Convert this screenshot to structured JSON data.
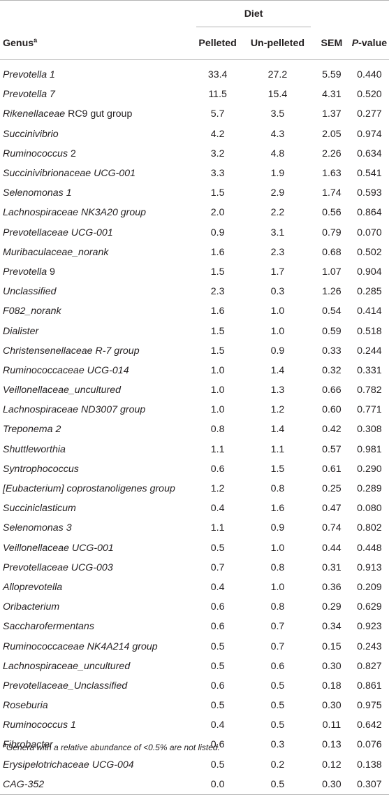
{
  "header": {
    "group_label": "Diet",
    "genus_label": "Genus",
    "genus_sup": "a",
    "col_pelleted": "Pelleted",
    "col_unpelleted": "Un-pelleted",
    "col_sem": "SEM",
    "col_p_italic": "P",
    "col_p_rest": "-value"
  },
  "rows": [
    {
      "genus": "Prevotella 1",
      "italic": "Prevotella 1",
      "rest": "",
      "pelleted": "33.4",
      "unpelleted": "27.2",
      "sem": "5.59",
      "p": "0.440"
    },
    {
      "italic": "Prevotella 7",
      "rest": "",
      "pelleted": "11.5",
      "unpelleted": "15.4",
      "sem": "4.31",
      "p": "0.520"
    },
    {
      "italic": "Rikenellaceae",
      "rest": " RC9 gut group",
      "pelleted": "5.7",
      "unpelleted": "3.5",
      "sem": "1.37",
      "p": "0.277"
    },
    {
      "italic": "Succinivibrio",
      "rest": "",
      "pelleted": "4.2",
      "unpelleted": "4.3",
      "sem": "2.05",
      "p": "0.974"
    },
    {
      "italic": "Ruminococcus",
      "rest": " 2",
      "pelleted": "3.2",
      "unpelleted": "4.8",
      "sem": "2.26",
      "p": "0.634"
    },
    {
      "italic": "Succinivibrionaceae UCG-001",
      "rest": "",
      "pelleted": "3.3",
      "unpelleted": "1.9",
      "sem": "1.63",
      "p": "0.541"
    },
    {
      "italic": "Selenomonas 1",
      "rest": "",
      "pelleted": "1.5",
      "unpelleted": "2.9",
      "sem": "1.74",
      "p": "0.593"
    },
    {
      "italic": "Lachnospiraceae NK3A20 group",
      "rest": "",
      "pelleted": "2.0",
      "unpelleted": "2.2",
      "sem": "0.56",
      "p": "0.864"
    },
    {
      "italic": "Prevotellaceae UCG-001",
      "rest": "",
      "pelleted": "0.9",
      "unpelleted": "3.1",
      "sem": "0.79",
      "p": "0.070"
    },
    {
      "italic": "Muribaculaceae_norank",
      "rest": "",
      "pelleted": "1.6",
      "unpelleted": "2.3",
      "sem": "0.68",
      "p": "0.502"
    },
    {
      "italic": "Prevotella",
      "rest": " 9",
      "pelleted": "1.5",
      "unpelleted": "1.7",
      "sem": "1.07",
      "p": "0.904"
    },
    {
      "italic": "Unclassified",
      "rest": "",
      "pelleted": "2.3",
      "unpelleted": "0.3",
      "sem": "1.26",
      "p": "0.285"
    },
    {
      "italic": "F082_norank",
      "rest": "",
      "pelleted": "1.6",
      "unpelleted": "1.0",
      "sem": "0.54",
      "p": "0.414"
    },
    {
      "italic": "Dialister",
      "rest": "",
      "pelleted": "1.5",
      "unpelleted": "1.0",
      "sem": "0.59",
      "p": "0.518"
    },
    {
      "italic": "Christensenellaceae R-7 group",
      "rest": "",
      "pelleted": "1.5",
      "unpelleted": "0.9",
      "sem": "0.33",
      "p": "0.244"
    },
    {
      "italic": "Ruminococcaceae UCG-014",
      "rest": "",
      "pelleted": "1.0",
      "unpelleted": "1.4",
      "sem": "0.32",
      "p": "0.331"
    },
    {
      "italic": "Veillonellaceae_uncultured",
      "rest": "",
      "pelleted": "1.0",
      "unpelleted": "1.3",
      "sem": "0.66",
      "p": "0.782"
    },
    {
      "italic": "Lachnospiraceae ND3007 group",
      "rest": "",
      "pelleted": "1.0",
      "unpelleted": "1.2",
      "sem": "0.60",
      "p": "0.771"
    },
    {
      "italic": "Treponema 2",
      "rest": "",
      "pelleted": "0.8",
      "unpelleted": "1.4",
      "sem": "0.42",
      "p": "0.308"
    },
    {
      "italic": "Shuttleworthia",
      "rest": "",
      "pelleted": "1.1",
      "unpelleted": "1.1",
      "sem": "0.57",
      "p": "0.981"
    },
    {
      "italic": "Syntrophococcus",
      "rest": "",
      "pelleted": "0.6",
      "unpelleted": "1.5",
      "sem": "0.61",
      "p": "0.290"
    },
    {
      "italic": "[Eubacterium] coprostanoligenes group",
      "rest": "",
      "pelleted": "1.2",
      "unpelleted": "0.8",
      "sem": "0.25",
      "p": "0.289"
    },
    {
      "italic": "Succiniclasticum",
      "rest": "",
      "pelleted": "0.4",
      "unpelleted": "1.6",
      "sem": "0.47",
      "p": "0.080"
    },
    {
      "italic": "Selenomonas 3",
      "rest": "",
      "pelleted": "1.1",
      "unpelleted": "0.9",
      "sem": "0.74",
      "p": "0.802"
    },
    {
      "italic": "Veillonellaceae UCG-001",
      "rest": "",
      "pelleted": "0.5",
      "unpelleted": "1.0",
      "sem": "0.44",
      "p": "0.448"
    },
    {
      "italic": "Prevotellaceae UCG-003",
      "rest": "",
      "pelleted": "0.7",
      "unpelleted": "0.8",
      "sem": "0.31",
      "p": "0.913"
    },
    {
      "italic": "Alloprevotella",
      "rest": "",
      "pelleted": "0.4",
      "unpelleted": "1.0",
      "sem": "0.36",
      "p": "0.209"
    },
    {
      "italic": "Oribacterium",
      "rest": "",
      "pelleted": "0.6",
      "unpelleted": "0.8",
      "sem": "0.29",
      "p": "0.629"
    },
    {
      "italic": "Saccharofermentans",
      "rest": "",
      "pelleted": "0.6",
      "unpelleted": "0.7",
      "sem": "0.34",
      "p": "0.923"
    },
    {
      "italic": "Ruminococcaceae NK4A214 group",
      "rest": "",
      "pelleted": "0.5",
      "unpelleted": "0.7",
      "sem": "0.15",
      "p": "0.243"
    },
    {
      "italic": "Lachnospiraceae_uncultured",
      "rest": "",
      "pelleted": "0.5",
      "unpelleted": "0.6",
      "sem": "0.30",
      "p": "0.827"
    },
    {
      "italic": "Prevotellaceae_Unclassified",
      "rest": "",
      "pelleted": "0.6",
      "unpelleted": "0.5",
      "sem": "0.18",
      "p": "0.861"
    },
    {
      "italic": "Roseburia",
      "rest": "",
      "pelleted": "0.5",
      "unpelleted": "0.5",
      "sem": "0.30",
      "p": "0.975"
    },
    {
      "italic": "Ruminococcus 1",
      "rest": "",
      "pelleted": "0.4",
      "unpelleted": "0.5",
      "sem": "0.11",
      "p": "0.642"
    },
    {
      "italic": "Fibrobacter",
      "rest": "",
      "pelleted": "0.6",
      "unpelleted": "0.3",
      "sem": "0.13",
      "p": "0.076"
    },
    {
      "italic": "Erysipelotrichaceae UCG-004",
      "rest": "",
      "pelleted": "0.5",
      "unpelleted": "0.2",
      "sem": "0.12",
      "p": "0.138"
    },
    {
      "italic": "CAG-352",
      "rest": "",
      "pelleted": "0.0",
      "unpelleted": "0.5",
      "sem": "0.30",
      "p": "0.307"
    }
  ],
  "footnote": {
    "sup": "a",
    "text": "Genera with a relative abundance of <0.5% are not listed."
  }
}
